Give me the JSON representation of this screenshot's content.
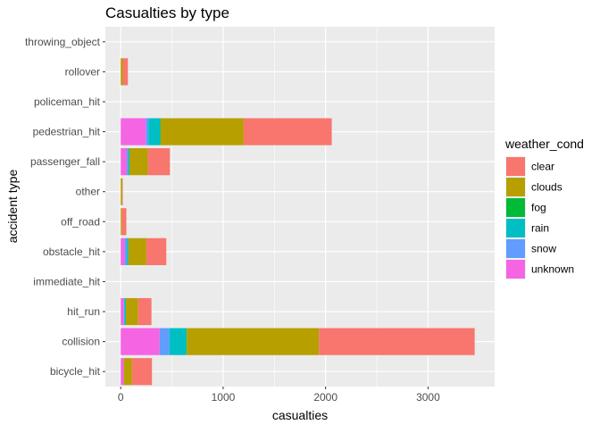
{
  "chart_data": {
    "type": "bar",
    "orientation": "horizontal",
    "stacked": true,
    "title": "Casualties by type",
    "xlabel": "casualties",
    "ylabel": "accident type",
    "xlim": [
      -150,
      3650
    ],
    "xticks": [
      0,
      1000,
      2000,
      3000
    ],
    "grid": true,
    "legend": {
      "title": "weather_cond",
      "position": "right"
    },
    "categories": [
      "bicycle_hit",
      "collision",
      "hit_run",
      "immediate_hit",
      "obstacle_hit",
      "off_road",
      "other",
      "passenger_fall",
      "pedestrian_hit",
      "policeman_hit",
      "rollover",
      "throwing_object"
    ],
    "series": [
      {
        "name": "unknown",
        "color": "#F564E3",
        "values": [
          30,
          380,
          30,
          0,
          40,
          0,
          0,
          60,
          245,
          0,
          0,
          0
        ]
      },
      {
        "name": "snow",
        "color": "#619CFF",
        "values": [
          0,
          95,
          5,
          0,
          20,
          0,
          0,
          10,
          25,
          0,
          0,
          0
        ]
      },
      {
        "name": "rain",
        "color": "#00BFC4",
        "values": [
          0,
          165,
          15,
          0,
          15,
          0,
          0,
          15,
          115,
          0,
          0,
          0
        ]
      },
      {
        "name": "fog",
        "color": "#00BA38",
        "values": [
          0,
          5,
          0,
          0,
          0,
          0,
          0,
          0,
          5,
          0,
          0,
          0
        ]
      },
      {
        "name": "clouds",
        "color": "#B79F00",
        "values": [
          80,
          1290,
          120,
          0,
          175,
          10,
          15,
          180,
          810,
          0,
          20,
          0
        ]
      },
      {
        "name": "clear",
        "color": "#F8766D",
        "values": [
          195,
          1520,
          130,
          0,
          195,
          45,
          5,
          215,
          860,
          0,
          50,
          0
        ]
      }
    ],
    "legend_order": [
      "clear",
      "clouds",
      "fog",
      "rain",
      "snow",
      "unknown"
    ]
  }
}
